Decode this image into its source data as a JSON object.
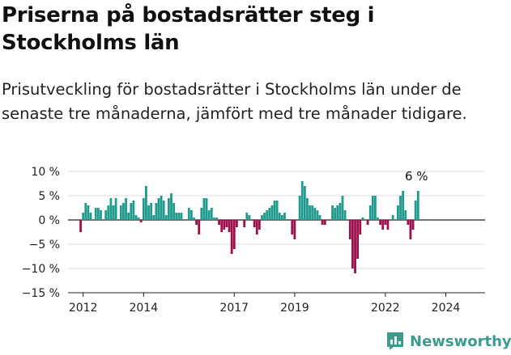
{
  "header": {
    "title": "Priserna på bostadsrätter steg i Stockholms län",
    "subtitle": "Prisutveckling för bostadsrätter i Stockholms län under de senaste tre månaderna, jämfört med tre månader tidigare."
  },
  "brand": {
    "name": "Newsworthy",
    "logo_icon": "newsworthy-logo-icon",
    "color": "#3d9b8e"
  },
  "chart_data": {
    "type": "bar",
    "x_start_year": 2011.917,
    "x_step_years": 0.08333,
    "values": [
      -2.5,
      1.5,
      3.5,
      3,
      1.5,
      0,
      2.5,
      2.5,
      2,
      0,
      2,
      3,
      4.5,
      3,
      4.5,
      0,
      3,
      3.5,
      4.5,
      1.5,
      3.5,
      4,
      1,
      0.5,
      -0.5,
      4.5,
      7,
      3,
      3.5,
      1,
      3.5,
      4.5,
      5,
      4,
      1,
      4.5,
      5.5,
      3.5,
      1.5,
      1.5,
      1.5,
      0,
      0,
      2.5,
      2,
      0.5,
      -1,
      -3,
      2.5,
      4.5,
      4.5,
      2,
      2.5,
      0.5,
      0.5,
      -1,
      -2.5,
      -2,
      -1.5,
      -2.5,
      -7,
      -6,
      -1.5,
      0,
      0,
      -1.5,
      1.5,
      1,
      0,
      -1.5,
      -3,
      -2,
      1,
      1.5,
      2,
      2.5,
      3,
      4,
      4,
      1.5,
      1,
      1.5,
      0,
      0,
      -3,
      -4,
      0,
      5,
      8,
      7,
      4.5,
      3,
      3,
      2.5,
      2,
      1,
      -1,
      -1,
      0,
      0,
      3,
      2.5,
      3,
      3.5,
      5,
      2,
      0,
      -4,
      -10,
      -11,
      -8,
      -3,
      0.5,
      0,
      -1,
      3,
      5,
      5,
      0.5,
      -1,
      -2,
      -1,
      -2,
      0,
      1,
      0,
      3,
      5,
      6,
      2,
      -1,
      -4,
      -2,
      4,
      6
    ],
    "ylim": [
      -15,
      10
    ],
    "yticks": [
      10,
      5,
      0,
      -5,
      -10,
      -15
    ],
    "ytick_labels": [
      "10 %",
      "5 %",
      "0 %",
      "−5 %",
      "−10 %",
      "−15 %"
    ],
    "xticks": [
      2012,
      2014,
      2017,
      2019,
      2022,
      2024
    ],
    "xtick_labels": [
      "2012",
      "2014",
      "2017",
      "2019",
      "2022",
      "2024"
    ],
    "xlim": [
      2011.5,
      2025.3
    ],
    "annotation": {
      "text": "6 %",
      "value": 6
    },
    "colors": {
      "positive": "#1f9a8c",
      "negative": "#9b0f4a"
    },
    "grid": "horizontal"
  }
}
